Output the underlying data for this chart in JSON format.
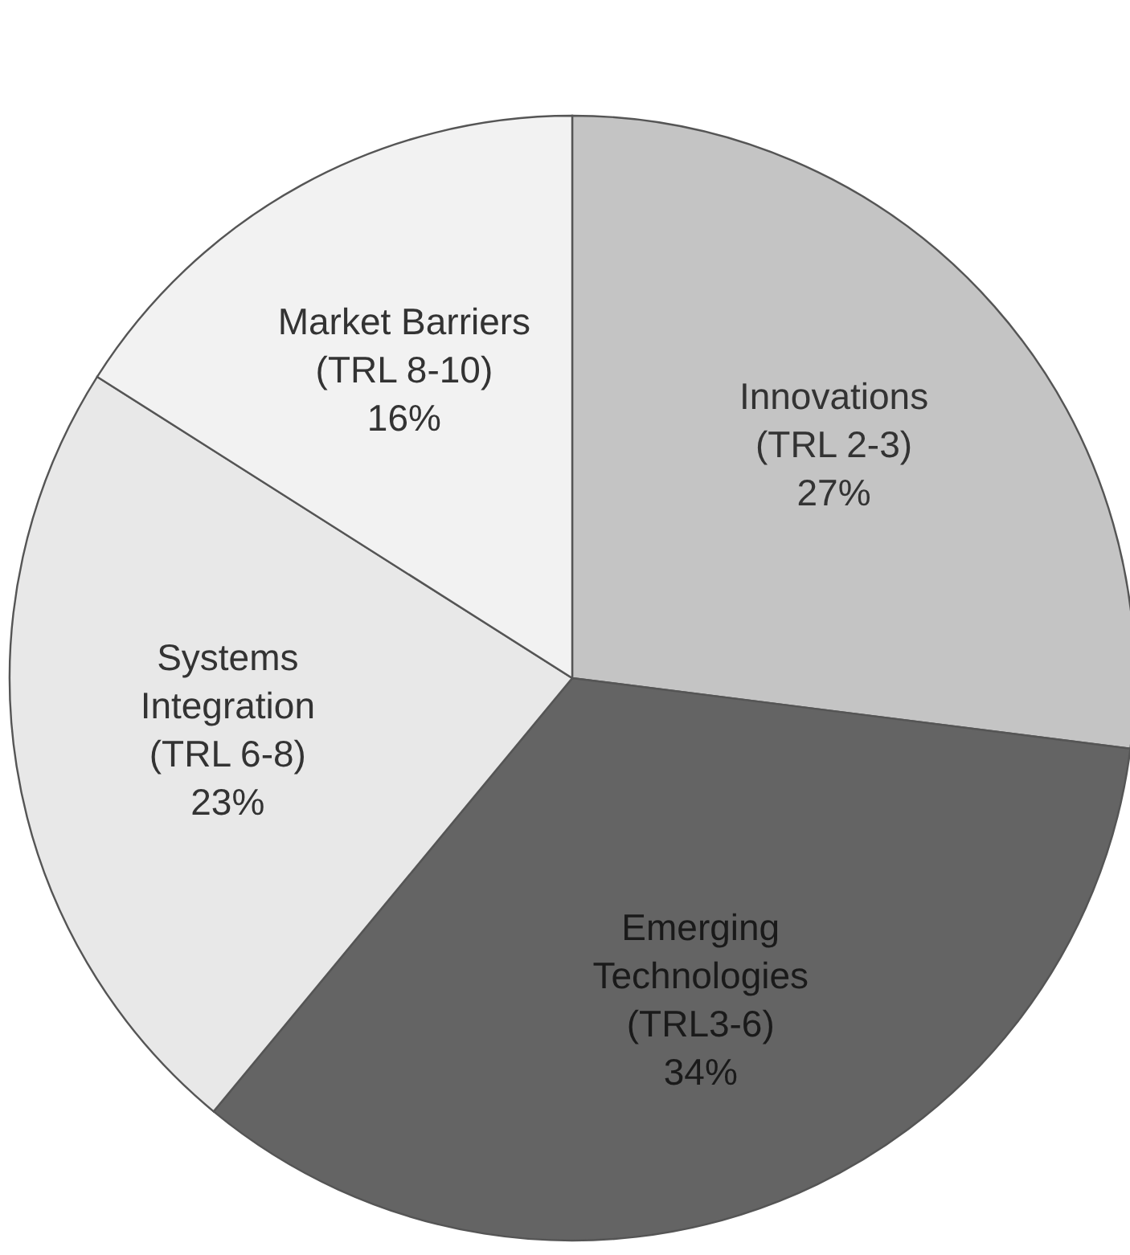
{
  "chart_data": {
    "type": "pie",
    "categories": [
      "Innovations\n(TRL 2-3)",
      "Emerging\nTechnologies\n(TRL3-6)",
      "Systems\nIntegration\n(TRL 6-8)",
      "Market Barriers\n(TRL 8-10)"
    ],
    "values": [
      27,
      34,
      23,
      16
    ],
    "colors": [
      "#c4c4c4",
      "#646464",
      "#e8e8e8",
      "#f2f2f2"
    ],
    "value_labels": [
      "27%",
      "34%",
      "23%",
      "16%"
    ]
  }
}
